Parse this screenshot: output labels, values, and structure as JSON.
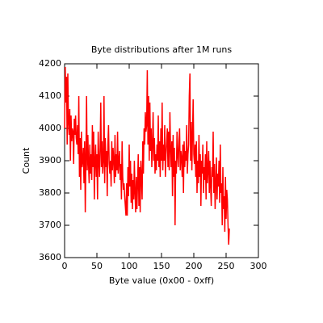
{
  "chart_data": {
    "type": "line",
    "title": "Byte distributions after 1M runs",
    "xlabel": "Byte value (0x00 - 0xff)",
    "ylabel": "Count",
    "xlim": [
      0,
      300
    ],
    "xticks": [
      0,
      50,
      100,
      150,
      200,
      250,
      300
    ],
    "ylim": [
      3600,
      4200
    ],
    "yticks": [
      3600,
      3700,
      3800,
      3900,
      4000,
      4100,
      4200
    ],
    "x": [
      0,
      1,
      2,
      3,
      4,
      5,
      6,
      7,
      8,
      9,
      10,
      11,
      12,
      13,
      14,
      15,
      16,
      17,
      18,
      19,
      20,
      21,
      22,
      23,
      24,
      25,
      26,
      27,
      28,
      29,
      30,
      31,
      32,
      33,
      34,
      35,
      36,
      37,
      38,
      39,
      40,
      41,
      42,
      43,
      44,
      45,
      46,
      47,
      48,
      49,
      50,
      51,
      52,
      53,
      54,
      55,
      56,
      57,
      58,
      59,
      60,
      61,
      62,
      63,
      64,
      65,
      66,
      67,
      68,
      69,
      70,
      71,
      72,
      73,
      74,
      75,
      76,
      77,
      78,
      79,
      80,
      81,
      82,
      83,
      84,
      85,
      86,
      87,
      88,
      89,
      90,
      91,
      92,
      93,
      94,
      95,
      96,
      97,
      98,
      99,
      100,
      101,
      102,
      103,
      104,
      105,
      106,
      107,
      108,
      109,
      110,
      111,
      112,
      113,
      114,
      115,
      116,
      117,
      118,
      119,
      120,
      121,
      122,
      123,
      124,
      125,
      126,
      127,
      128,
      129,
      130,
      131,
      132,
      133,
      134,
      135,
      136,
      137,
      138,
      139,
      140,
      141,
      142,
      143,
      144,
      145,
      146,
      147,
      148,
      149,
      150,
      151,
      152,
      153,
      154,
      155,
      156,
      157,
      158,
      159,
      160,
      161,
      162,
      163,
      164,
      165,
      166,
      167,
      168,
      169,
      170,
      171,
      172,
      173,
      174,
      175,
      176,
      177,
      178,
      179,
      180,
      181,
      182,
      183,
      184,
      185,
      186,
      187,
      188,
      189,
      190,
      191,
      192,
      193,
      194,
      195,
      196,
      197,
      198,
      199,
      200,
      201,
      202,
      203,
      204,
      205,
      206,
      207,
      208,
      209,
      210,
      211,
      212,
      213,
      214,
      215,
      216,
      217,
      218,
      219,
      220,
      221,
      222,
      223,
      224,
      225,
      226,
      227,
      228,
      229,
      230,
      231,
      232,
      233,
      234,
      235,
      236,
      237,
      238,
      239,
      240,
      241,
      242,
      243,
      244,
      245,
      246,
      247,
      248,
      249,
      250,
      251,
      252,
      253,
      254,
      255
    ],
    "series": [
      {
        "name": "Count",
        "color": "#ff0000",
        "values": [
          4000,
          4190,
          4080,
          4160,
          3950,
          4170,
          4020,
          3980,
          4060,
          3900,
          4040,
          3960,
          4000,
          3990,
          3890,
          4030,
          3980,
          4040,
          3970,
          3950,
          4010,
          3920,
          4100,
          3850,
          3970,
          3810,
          3990,
          3880,
          3900,
          3940,
          3830,
          3960,
          3740,
          3910,
          4100,
          3870,
          3980,
          3890,
          3830,
          3950,
          3860,
          3920,
          3840,
          4010,
          3880,
          3990,
          3780,
          3900,
          3950,
          3850,
          3920,
          3780,
          3990,
          3900,
          3850,
          3940,
          4080,
          3880,
          3960,
          3860,
          3900,
          4100,
          3830,
          3970,
          3880,
          3930,
          3790,
          3950,
          4010,
          3890,
          3860,
          3900,
          3820,
          3960,
          3870,
          3940,
          3900,
          3830,
          3980,
          3850,
          3920,
          3870,
          3990,
          3860,
          3900,
          3930,
          3840,
          3890,
          3780,
          3960,
          3850,
          3810,
          3830,
          3790,
          3760,
          3730,
          3830,
          3730,
          3880,
          3790,
          3950,
          3820,
          3900,
          3770,
          3860,
          3750,
          3840,
          3780,
          3900,
          3800,
          3740,
          3850,
          3750,
          3830,
          3920,
          3760,
          3880,
          3740,
          3900,
          3850,
          3780,
          3960,
          3860,
          4000,
          3950,
          4050,
          3990,
          4010,
          4180,
          3950,
          4100,
          3900,
          4080,
          3930,
          4000,
          3880,
          3950,
          4050,
          3900,
          3970,
          3860,
          3920,
          3870,
          3950,
          3900,
          4040,
          3880,
          3960,
          3850,
          4000,
          3900,
          4080,
          3870,
          3950,
          3900,
          4010,
          3850,
          3920,
          3960,
          4000,
          3880,
          3990,
          3870,
          4050,
          3940,
          3880,
          3960,
          3790,
          3980,
          3850,
          3940,
          3700,
          3900,
          3860,
          3990,
          3920,
          3880,
          3960,
          4000,
          3870,
          3930,
          3910,
          3850,
          3950,
          3800,
          3960,
          3880,
          3930,
          3900,
          4010,
          3860,
          3920,
          3950,
          4100,
          4170,
          3900,
          4020,
          3870,
          3980,
          4090,
          3920,
          3890,
          3950,
          3850,
          3960,
          3800,
          3900,
          3830,
          3980,
          3850,
          3920,
          3760,
          3900,
          3860,
          3950,
          3800,
          3880,
          3840,
          3920,
          3780,
          3960,
          3830,
          3870,
          3930,
          3800,
          3900,
          3820,
          3760,
          3880,
          3850,
          3990,
          3800,
          3890,
          3750,
          3830,
          3910,
          3780,
          3860,
          3820,
          3900,
          3770,
          3950,
          3800,
          3830,
          3700,
          3880,
          3750,
          3790,
          3680,
          3850,
          3720,
          3810,
          3780,
          3700,
          3640,
          3690
        ]
      }
    ]
  }
}
